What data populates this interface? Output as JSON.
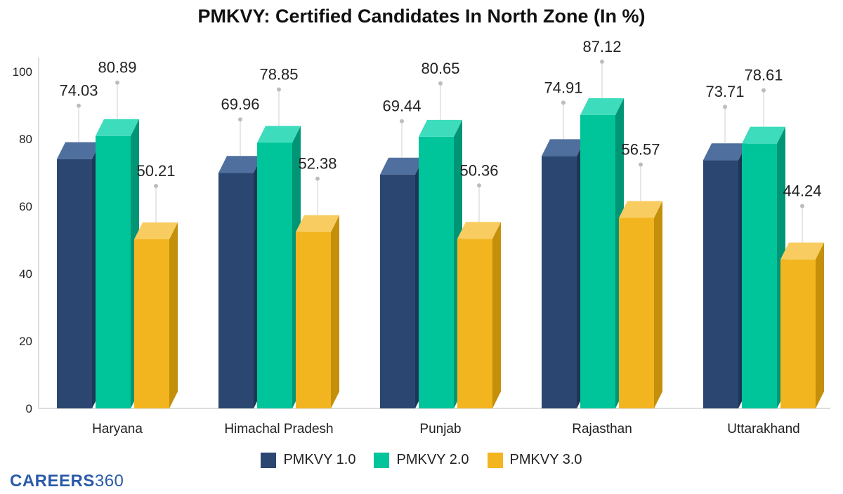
{
  "chart_data": {
    "type": "bar",
    "title": "PMKVY: Certified Candidates In North Zone (In %)",
    "categories": [
      "Haryana",
      "Himachal Pradesh",
      "Punjab",
      "Rajasthan",
      "Uttarakhand"
    ],
    "series": [
      {
        "name": "PMKVY 1.0",
        "color": "#2b4771",
        "top_color": "#4f6f9e",
        "side_color": "#1e3556",
        "values": [
          74.03,
          69.96,
          69.44,
          74.91,
          73.71
        ],
        "labels": [
          "74.03",
          "69.96",
          "69.44",
          "74.91",
          "73.71"
        ]
      },
      {
        "name": "PMKVY 2.0",
        "color": "#00c49a",
        "top_color": "#3ddcbc",
        "side_color": "#009575",
        "values": [
          80.89,
          78.85,
          80.65,
          87.12,
          78.61
        ],
        "labels": [
          "80.89",
          "78.85",
          "80.65",
          "87.12",
          "78.61"
        ]
      },
      {
        "name": "PMKVY 3.0",
        "color": "#f3b51f",
        "top_color": "#f8cc60",
        "side_color": "#c48f0a",
        "values": [
          50.21,
          52.38,
          50.36,
          56.57,
          44.24
        ],
        "labels": [
          "50.21",
          "52.38",
          "50.36",
          "56.57",
          "44.24"
        ]
      }
    ],
    "ylim": [
      0,
      100
    ],
    "yticks": [
      "0",
      "20",
      "40",
      "60",
      "80",
      "100"
    ],
    "xlabel": "",
    "ylabel": "",
    "grid": false,
    "legend_position": "bottom"
  },
  "brand": {
    "word": "CAREERS",
    "number": "360"
  }
}
